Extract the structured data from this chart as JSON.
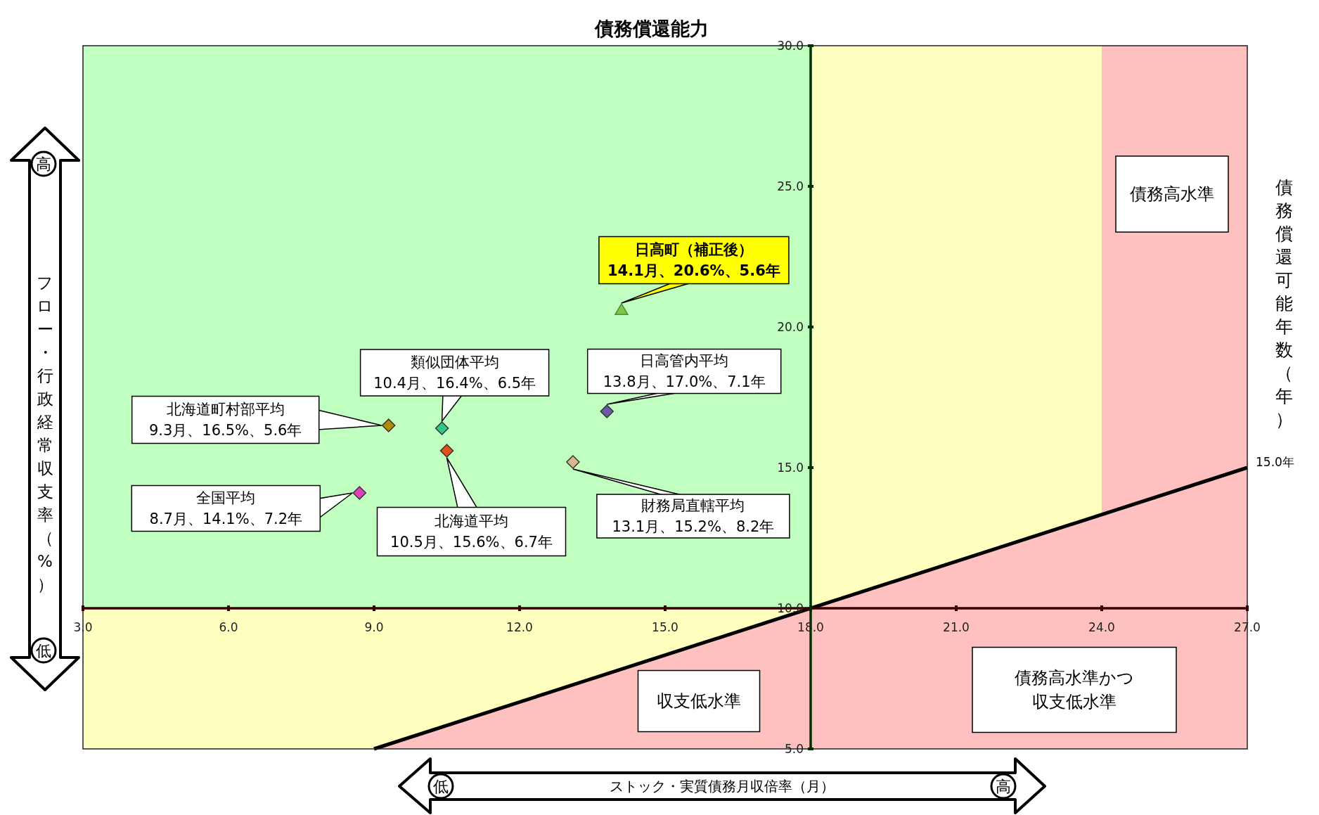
{
  "chart_data": {
    "type": "scatter",
    "title": "債務償還能力",
    "xlabel": "ストック・実質債務月収倍率（月）",
    "ylabel": "フロー・行政経常収支率（%）",
    "y2label": "債務償還可能年数（年）",
    "xlim": [
      3,
      27
    ],
    "ylim": [
      5,
      30
    ],
    "xticks": [
      {
        "value": 3,
        "label": "3.0"
      },
      {
        "value": 6,
        "label": "6.0"
      },
      {
        "value": 9,
        "label": "9.0"
      },
      {
        "value": 12,
        "label": "12.0"
      },
      {
        "value": 15,
        "label": "15.0"
      },
      {
        "value": 18,
        "label": "18.0"
      },
      {
        "value": 21,
        "label": "21.0"
      },
      {
        "value": 24,
        "label": "24.0"
      },
      {
        "value": 27,
        "label": "27.0"
      }
    ],
    "yticks": [
      {
        "value": 5,
        "label": "5.0"
      },
      {
        "value": 10,
        "label": "10.0"
      },
      {
        "value": 15,
        "label": "15.0"
      },
      {
        "value": 20,
        "label": "20.0"
      },
      {
        "value": 25,
        "label": "25.0"
      },
      {
        "value": 30,
        "label": "30.0"
      }
    ],
    "marker": "diamond",
    "series": [
      {
        "color": "#7cc84a",
        "x": [
          14.1
        ],
        "values": [
          20.6
        ],
        "marker": "triangle"
      },
      {
        "color": "#6a5aa8",
        "x": [
          13.8
        ],
        "values": [
          17.0
        ]
      },
      {
        "color": "#2ec88a",
        "x": [
          10.4
        ],
        "values": [
          16.4
        ]
      },
      {
        "color": "#b08a00",
        "x": [
          9.3
        ],
        "values": [
          16.5
        ]
      },
      {
        "color": "#e0501a",
        "x": [
          10.5
        ],
        "values": [
          15.6
        ]
      },
      {
        "color": "#d4b896",
        "x": [
          13.1
        ],
        "values": [
          15.2
        ]
      },
      {
        "color": "#e040c0",
        "x": [
          8.7
        ],
        "values": [
          14.1
        ]
      },
      {
        "type": "area",
        "color": "#ffc0c0",
        "x": [
          9,
          27
        ],
        "values": [
          5,
          15
        ],
        "marker": "none"
      }
    ],
    "bands": [
      {
        "axis": "x",
        "from": 3,
        "to": 18,
        "color": "#c0ffc0"
      },
      {
        "axis": "y",
        "from": 5,
        "to": 10,
        "color": "#ffffc0"
      },
      {
        "axis": "x",
        "from": 18,
        "to": 24,
        "color": "#ffffc0"
      },
      {
        "axis": "x",
        "from": 24,
        "to": 27,
        "color": "#ffc0c0"
      }
    ],
    "annotations": [
      {
        "text": "15.0年",
        "x": 27,
        "y": 15
      },
      "日高町（補正後）",
      "14.1月、20.6%、5.6年",
      "日高管内平均",
      "13.8月、17.0%、7.1年",
      "類似団体平均",
      "10.4月、16.4%、6.5年",
      "北海道町村部平均",
      "9.3月、16.5%、5.6年",
      "北海道平均",
      "10.5月、15.6%、6.7年",
      "財務局直轄平均",
      "13.1月、15.2%、8.2年",
      "全国平均",
      "8.7月、14.1%、7.2年",
      "債務高水準",
      "収支低水準",
      "債務高水準かつ収支低水準",
      "高",
      "低",
      "低",
      "高"
    ]
  }
}
